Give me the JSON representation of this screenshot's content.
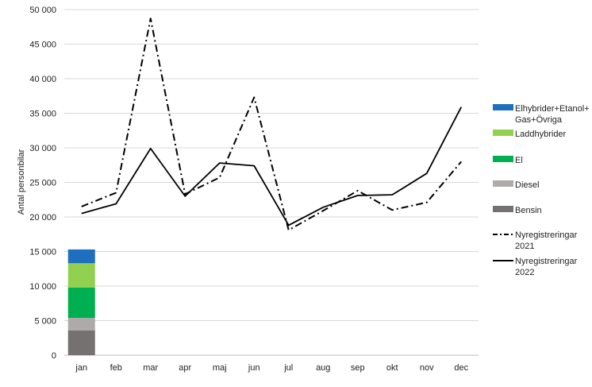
{
  "chart_data": {
    "type": "line",
    "categories": [
      "jan",
      "feb",
      "mar",
      "apr",
      "maj",
      "jun",
      "jul",
      "aug",
      "sep",
      "okt",
      "nov",
      "dec"
    ],
    "ylabel": "Antal personbilar",
    "ylim": [
      0,
      50000
    ],
    "yticks": [
      0,
      5000,
      10000,
      15000,
      20000,
      25000,
      30000,
      35000,
      40000,
      45000,
      50000
    ],
    "ytick_labels": [
      "0",
      "5 000",
      "10 000",
      "15 000",
      "20 000",
      "25 000",
      "30 000",
      "35 000",
      "40 000",
      "45 000",
      "50 000"
    ],
    "grid": true,
    "legend_position": "right",
    "stacked_bar": {
      "category": "jan",
      "segments": [
        {
          "name": "Bensin",
          "value": 3600,
          "color": "#767171"
        },
        {
          "name": "Diesel",
          "value": 1800,
          "color": "#AEAAAA"
        },
        {
          "name": "El",
          "value": 4400,
          "color": "#00B050"
        },
        {
          "name": "Laddhybrider",
          "value": 3500,
          "color": "#92D050"
        },
        {
          "name": "Elhybrider+Etanol+Gas+Övriga",
          "value": 2000,
          "color": "#1F6FC0"
        }
      ]
    },
    "series": [
      {
        "name": "Nyregistreringar 2021",
        "style": "dash-dot",
        "color": "#000000",
        "values": [
          21500,
          23500,
          48700,
          23300,
          25700,
          37300,
          18100,
          20900,
          23800,
          21000,
          22100,
          28000
        ]
      },
      {
        "name": "Nyregistreringar 2022",
        "style": "solid",
        "color": "#000000",
        "values": [
          20500,
          21900,
          29900,
          23000,
          27800,
          27400,
          18800,
          21400,
          23100,
          23200,
          26300,
          35900
        ]
      }
    ]
  },
  "legend": {
    "entries": [
      {
        "lines": [
          "Elhybrider+Etanol+",
          "Gas+Övriga"
        ],
        "color": "#1F6FC0",
        "kind": "box"
      },
      {
        "lines": [
          "Laddhybrider"
        ],
        "color": "#92D050",
        "kind": "box"
      },
      {
        "lines": [
          "El"
        ],
        "color": "#00B050",
        "kind": "box"
      },
      {
        "lines": [
          "Diesel"
        ],
        "color": "#AEAAAA",
        "kind": "box"
      },
      {
        "lines": [
          "Bensin"
        ],
        "color": "#767171",
        "kind": "box"
      },
      {
        "lines": [
          "Nyregistreringar",
          "2021"
        ],
        "color": "#000000",
        "kind": "dash-dot"
      },
      {
        "lines": [
          "Nyregistreringar",
          "2022"
        ],
        "color": "#000000",
        "kind": "solid"
      }
    ]
  }
}
